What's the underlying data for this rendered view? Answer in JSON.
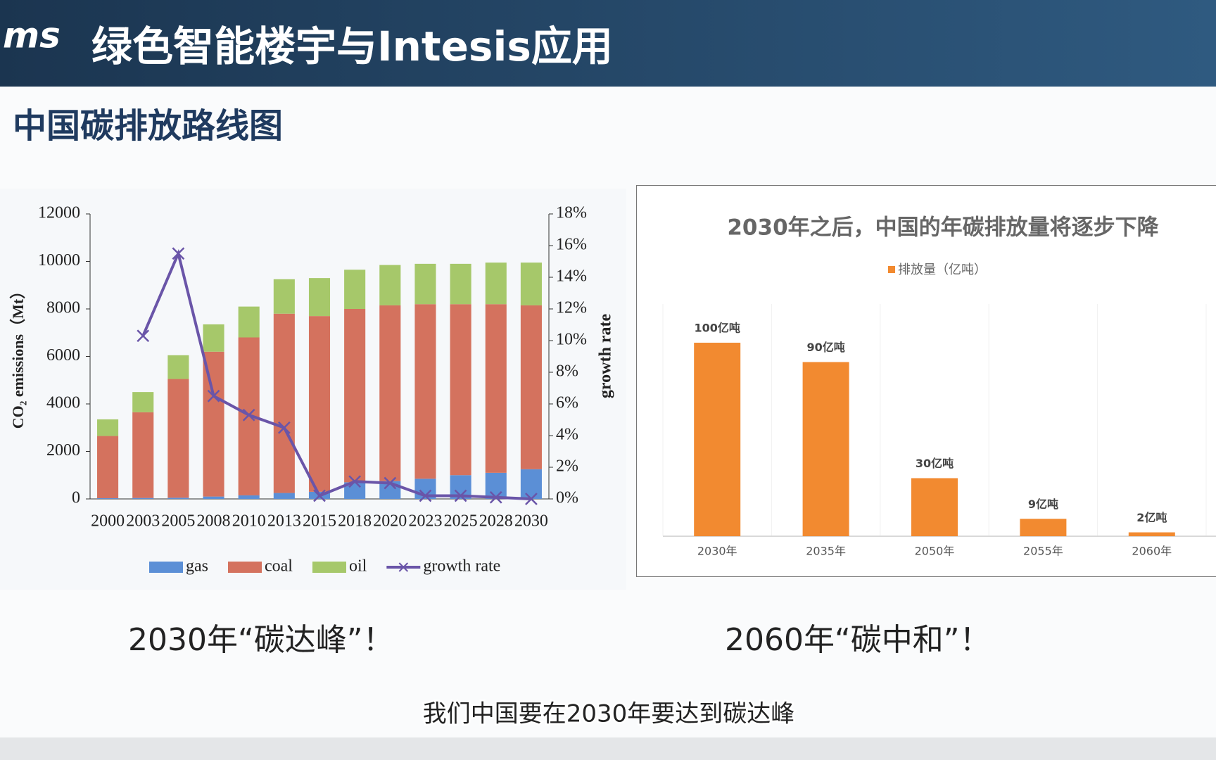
{
  "header": {
    "logo": "ms",
    "title": "绿色智能楼宇与Intesis应用"
  },
  "slide_title": "中国碳排放路线图",
  "captions": [
    "2030年“碳达峰”！",
    "2060年“碳中和”！"
  ],
  "subtitle": "我们中国要在2030年要达到碳达峰",
  "chart_data": [
    {
      "type": "bar",
      "stacked": true,
      "ylabel": "CO₂ emissions（Mt）",
      "y2label": "growth rate",
      "categories": [
        "2000",
        "2003",
        "2005",
        "2008",
        "2010",
        "2013",
        "2015",
        "2018",
        "2020",
        "2023",
        "2025",
        "2028",
        "2030"
      ],
      "series": [
        {
          "name": "gas",
          "color": "#5b8fd6",
          "values": [
            30,
            40,
            50,
            100,
            150,
            250,
            300,
            700,
            750,
            850,
            1000,
            1100,
            1250
          ]
        },
        {
          "name": "coal",
          "color": "#d4725e",
          "values": [
            2620,
            3610,
            5000,
            6100,
            6650,
            7550,
            7400,
            7300,
            7400,
            7350,
            7200,
            7100,
            6900
          ]
        },
        {
          "name": "oil",
          "color": "#a6c86a",
          "values": [
            700,
            850,
            1000,
            1150,
            1300,
            1450,
            1600,
            1650,
            1700,
            1700,
            1700,
            1750,
            1800
          ]
        },
        {
          "name": "growth rate",
          "type": "line",
          "axis": "y2",
          "color": "#6a55a8",
          "values": [
            null,
            10.3,
            15.5,
            6.5,
            5.3,
            4.5,
            0.2,
            1.1,
            1.0,
            0.2,
            0.2,
            0.1,
            0.0
          ]
        }
      ],
      "ylim": [
        0,
        12000
      ],
      "yticks": [
        0,
        2000,
        4000,
        6000,
        8000,
        10000,
        12000
      ],
      "y2lim": [
        0,
        18
      ],
      "y2ticks": [
        {
          "value": 0,
          "label": "0%"
        },
        {
          "value": 2,
          "label": "2%"
        },
        {
          "value": 4,
          "label": "4%"
        },
        {
          "value": 6,
          "label": "6%"
        },
        {
          "value": 8,
          "label": "8%"
        },
        {
          "value": 10,
          "label": "10%"
        },
        {
          "value": 12,
          "label": "12%"
        },
        {
          "value": 14,
          "label": "14%"
        },
        {
          "value": 16,
          "label": "16%"
        },
        {
          "value": 18,
          "label": "18%"
        }
      ],
      "legend": "bottom"
    },
    {
      "type": "bar",
      "title": "2030年之后，中国的年碳排放量将逐步下降",
      "legend_label": "排放量（亿吨）",
      "categories": [
        "2030年",
        "2035年",
        "2050年",
        "2055年",
        "2060年"
      ],
      "values": [
        100,
        90,
        30,
        9,
        2
      ],
      "value_labels": [
        "100亿吨",
        "90亿吨",
        "30亿吨",
        "9亿吨",
        "2亿吨"
      ],
      "color": "#f28a30",
      "legend": "top"
    }
  ]
}
